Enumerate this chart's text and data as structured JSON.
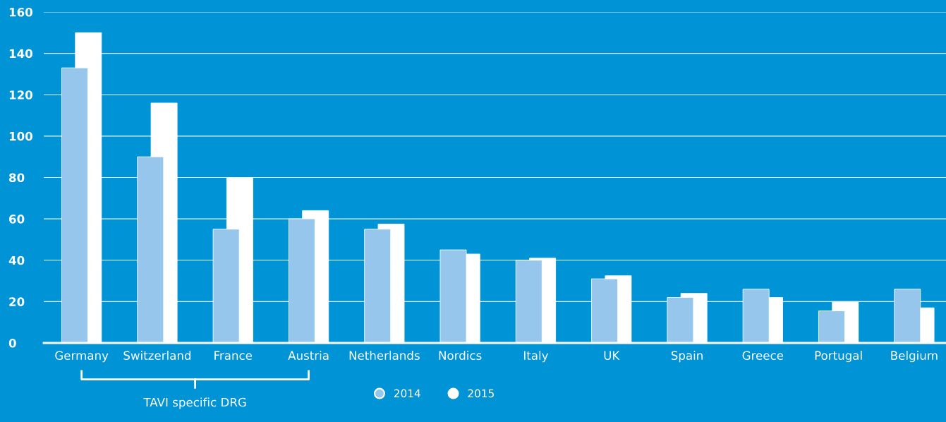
{
  "chart_data": {
    "type": "bar",
    "categories": [
      "Germany",
      "Switzerland",
      "France",
      "Austria",
      "Netherlands",
      "Nordics",
      "Italy",
      "UK",
      "Spain",
      "Greece",
      "Portugal",
      "Belgium"
    ],
    "series": [
      {
        "name": "2014",
        "color": "#96c6eb",
        "values": [
          133,
          90,
          55,
          60,
          55,
          45,
          40,
          31,
          22,
          26,
          15.5,
          26
        ]
      },
      {
        "name": "2015",
        "color": "#ffffff",
        "values": [
          150,
          116,
          80,
          64,
          57.5,
          43,
          41,
          32.5,
          24,
          22,
          20,
          17
        ]
      }
    ],
    "ylim": [
      0,
      160
    ],
    "yticks": [
      0,
      20,
      40,
      60,
      80,
      100,
      120,
      140,
      160
    ],
    "grid": "y",
    "legend": "bottom",
    "marker": "circle",
    "annotations": [
      "TAVI specific DRG"
    ]
  }
}
